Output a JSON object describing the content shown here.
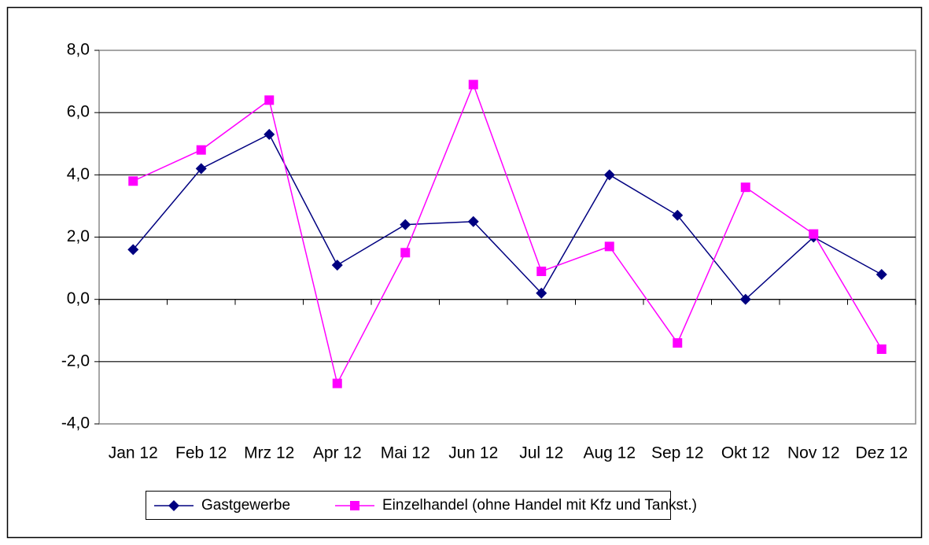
{
  "chart_data": {
    "type": "line",
    "categories": [
      "Jan 12",
      "Feb 12",
      "Mrz 12",
      "Apr 12",
      "Mai 12",
      "Jun 12",
      "Jul 12",
      "Aug 12",
      "Sep 12",
      "Okt 12",
      "Nov 12",
      "Dez 12"
    ],
    "series": [
      {
        "name": "Gastgewerbe",
        "color": "#000080",
        "marker": "diamond",
        "values": [
          1.6,
          4.2,
          5.3,
          1.1,
          2.4,
          2.5,
          0.2,
          4.0,
          2.7,
          0.0,
          2.0,
          0.8
        ]
      },
      {
        "name": "Einzelhandel (ohne Handel mit Kfz und Tankst.)",
        "color": "#ff00ff",
        "marker": "square",
        "values": [
          3.8,
          4.8,
          6.4,
          -2.7,
          1.5,
          6.9,
          0.9,
          1.7,
          -1.4,
          3.6,
          2.1,
          -1.6
        ]
      }
    ],
    "ylim": [
      -4,
      8
    ],
    "yticks": [
      {
        "value": -4,
        "label": "-4,0"
      },
      {
        "value": -2,
        "label": "-2,0"
      },
      {
        "value": 0,
        "label": "0,0"
      },
      {
        "value": 2,
        "label": "2,0"
      },
      {
        "value": 4,
        "label": "4,0"
      },
      {
        "value": 6,
        "label": "6,0"
      },
      {
        "value": 8,
        "label": "8,0"
      }
    ],
    "grid": true,
    "legend": "bottom"
  }
}
